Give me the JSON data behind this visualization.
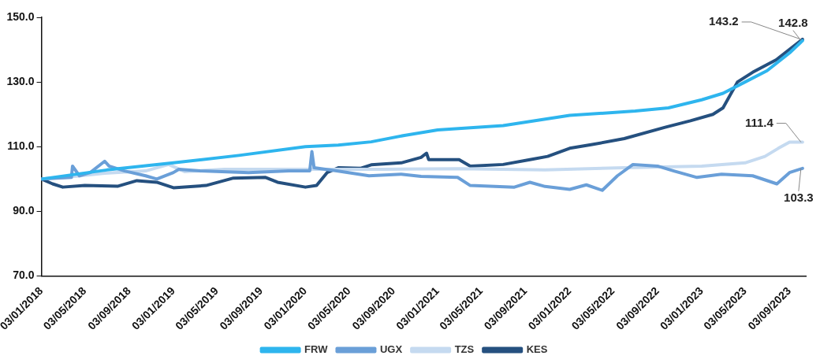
{
  "chart_data": {
    "type": "line",
    "xlim": [
      "2018-01-03",
      "2023-10-18"
    ],
    "xticks": [
      {
        "value": "2018-01-03",
        "label": "03/01/2018"
      },
      {
        "value": "2018-05-03",
        "label": "03/05/2018"
      },
      {
        "value": "2018-09-03",
        "label": "03/09/2018"
      },
      {
        "value": "2019-01-03",
        "label": "03/01/2019"
      },
      {
        "value": "2019-05-03",
        "label": "03/05/2019"
      },
      {
        "value": "2019-09-03",
        "label": "03/09/2019"
      },
      {
        "value": "2020-01-03",
        "label": "03/01/2020"
      },
      {
        "value": "2020-05-03",
        "label": "03/05/2020"
      },
      {
        "value": "2020-09-03",
        "label": "03/09/2020"
      },
      {
        "value": "2021-01-03",
        "label": "03/01/2021"
      },
      {
        "value": "2021-05-03",
        "label": "03/05/2021"
      },
      {
        "value": "2021-09-03",
        "label": "03/09/2021"
      },
      {
        "value": "2022-01-03",
        "label": "03/01/2022"
      },
      {
        "value": "2022-05-03",
        "label": "03/05/2022"
      },
      {
        "value": "2022-09-03",
        "label": "03/09/2022"
      },
      {
        "value": "2023-01-03",
        "label": "03/01/2023"
      },
      {
        "value": "2023-05-03",
        "label": "03/05/2023"
      },
      {
        "value": "2023-09-03",
        "label": "03/09/2023"
      }
    ],
    "ylim": [
      70,
      150
    ],
    "yticks": [
      {
        "value": 70,
        "label": "70.0"
      },
      {
        "value": 90,
        "label": "90.0"
      },
      {
        "value": 110,
        "label": "110.0"
      },
      {
        "value": 130,
        "label": "130.0"
      },
      {
        "value": 150,
        "label": "150.0"
      }
    ],
    "grid": false,
    "legend": "bottom",
    "marker": "none",
    "line_style": "solid",
    "series": [
      {
        "name": "FRW",
        "color": "#2eb5ee",
        "x": [
          "2018-01-03",
          "2018-07-03",
          "2019-01-03",
          "2019-07-03",
          "2020-01-03",
          "2020-04-03",
          "2020-07-03",
          "2020-10-03",
          "2021-01-03",
          "2021-07-03",
          "2022-01-03",
          "2022-07-03",
          "2022-10-03",
          "2023-01-03",
          "2023-03-03",
          "2023-05-03",
          "2023-07-03",
          "2023-09-03",
          "2023-10-09"
        ],
        "values": [
          100,
          102.8,
          105,
          107.3,
          110,
          110.5,
          111.5,
          113.5,
          115.2,
          116.5,
          119.7,
          121,
          122,
          124.5,
          126.5,
          130,
          133.5,
          139,
          142.8
        ]
      },
      {
        "name": "UGX",
        "color": "#6a9fd8",
        "x": [
          "2018-01-03",
          "2018-03-27",
          "2018-03-30",
          "2018-04-18",
          "2018-05-18",
          "2018-06-27",
          "2018-07-09",
          "2018-08-21",
          "2018-10-18",
          "2018-11-18",
          "2019-01-03",
          "2019-01-18",
          "2019-03-18",
          "2019-07-30",
          "2019-11-18",
          "2020-01-15",
          "2020-01-21",
          "2020-01-27",
          "2020-03-30",
          "2020-06-27",
          "2020-09-24",
          "2020-11-18",
          "2021-02-27",
          "2021-04-03",
          "2021-08-03",
          "2021-09-15",
          "2021-10-27",
          "2022-01-03",
          "2022-02-18",
          "2022-04-03",
          "2022-05-15",
          "2022-06-27",
          "2022-09-03",
          "2022-10-18",
          "2022-12-21",
          "2023-02-27",
          "2023-05-24",
          "2023-07-30",
          "2023-09-03",
          "2023-10-09"
        ],
        "values": [
          100,
          100.5,
          104,
          101,
          102,
          105.5,
          104,
          102.5,
          101,
          100,
          102,
          103,
          102.5,
          102,
          102.5,
          102.5,
          108.5,
          103.5,
          102.5,
          101,
          101.5,
          100.8,
          100.5,
          98,
          97.5,
          99,
          97.7,
          96.8,
          98.2,
          96.5,
          101,
          104.5,
          104,
          102.5,
          100.5,
          101.5,
          101,
          98.5,
          102,
          103.3
        ]
      },
      {
        "name": "TZS",
        "color": "#c5daf0",
        "x": [
          "2018-01-03",
          "2018-03-09",
          "2018-06-27",
          "2018-10-18",
          "2018-12-21",
          "2019-02-03",
          "2019-05-24",
          "2020-01-03",
          "2020-08-03",
          "2021-03-03",
          "2021-10-27",
          "2022-06-03",
          "2023-01-03",
          "2023-05-03",
          "2023-06-27",
          "2023-08-03",
          "2023-09-03",
          "2023-10-09"
        ],
        "values": [
          100,
          100.5,
          101.8,
          102.5,
          104.5,
          102.3,
          103,
          103,
          103,
          103.2,
          102.8,
          103.5,
          104,
          105,
          107,
          109.5,
          111.4,
          111.4
        ]
      },
      {
        "name": "KES",
        "color": "#25507f",
        "x": [
          "2018-01-03",
          "2018-02-03",
          "2018-03-03",
          "2018-05-03",
          "2018-08-03",
          "2018-09-24",
          "2018-11-18",
          "2019-01-03",
          "2019-04-03",
          "2019-06-18",
          "2019-09-15",
          "2019-10-18",
          "2020-01-03",
          "2020-02-03",
          "2020-03-03",
          "2020-04-03",
          "2020-06-03",
          "2020-07-03",
          "2020-09-24",
          "2020-11-18",
          "2020-12-03",
          "2020-12-09",
          "2021-03-03",
          "2021-04-03",
          "2021-07-03",
          "2021-09-15",
          "2021-11-03",
          "2022-01-03",
          "2022-03-03",
          "2022-06-03",
          "2022-09-24",
          "2022-12-03",
          "2023-02-03",
          "2023-03-03",
          "2023-04-12",
          "2023-05-24",
          "2023-07-30",
          "2023-10-09"
        ],
        "values": [
          100,
          98.5,
          97.5,
          98,
          97.8,
          99.5,
          99,
          97.3,
          98,
          100.3,
          100.5,
          99,
          97.5,
          98,
          102,
          103.5,
          103.3,
          104.4,
          105,
          106.7,
          108,
          106,
          106,
          104,
          104.5,
          106,
          107,
          109.5,
          110.6,
          112.5,
          116,
          118,
          120,
          122,
          130,
          133,
          137,
          143.2
        ]
      }
    ],
    "annotations": [
      {
        "text": "143.2",
        "x": "2023-10-09",
        "y": 143.2
      },
      {
        "text": "142.8",
        "x": "2023-10-09",
        "y": 142.8
      },
      {
        "text": "111.4",
        "x": "2023-10-09",
        "y": 111.4
      },
      {
        "text": "103.3",
        "x": "2023-10-09",
        "y": 103.3
      }
    ]
  }
}
